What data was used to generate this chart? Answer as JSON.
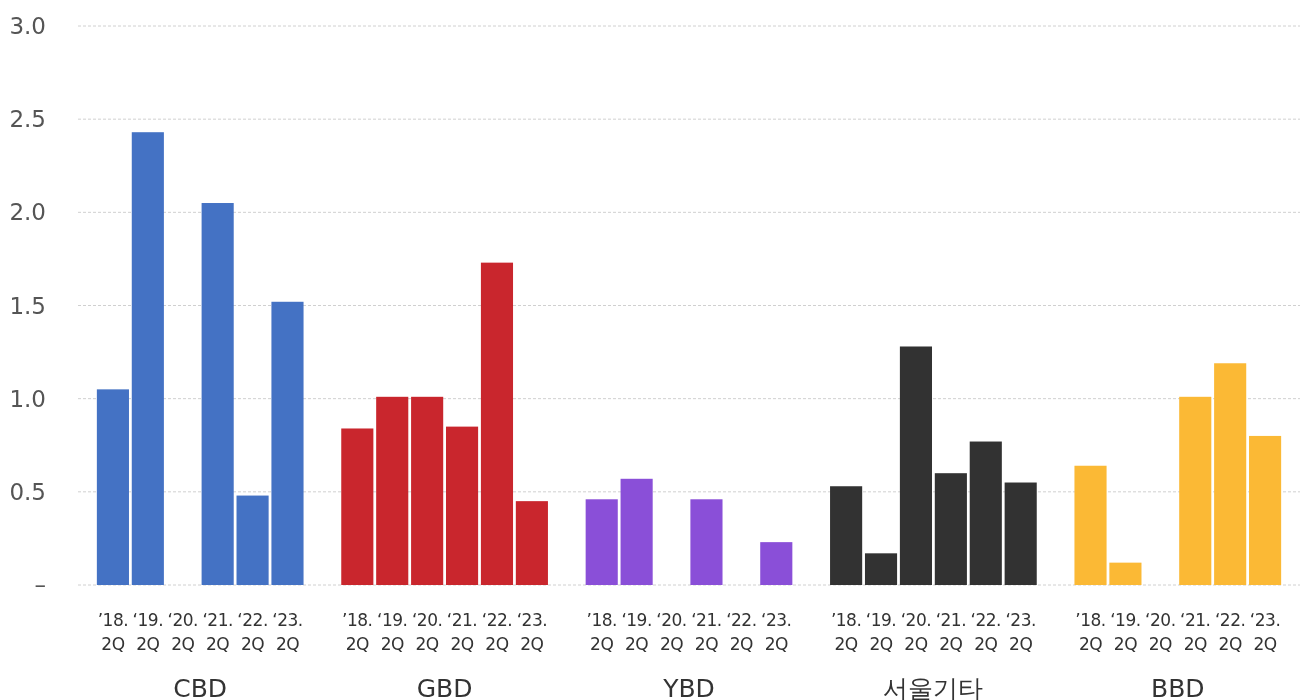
{
  "chart_data": {
    "type": "bar",
    "categories": [
      "’18. 2Q",
      "‘19. 2Q",
      "‘20. 2Q",
      "‘21. 2Q",
      "‘22. 2Q",
      "‘23. 2Q",
      "’18. 2Q",
      "‘19. 2Q",
      "‘20. 2Q",
      "‘21. 2Q",
      "‘22. 2Q",
      "‘23. 2Q",
      "’18. 2Q",
      "‘19. 2Q",
      "‘20. 2Q",
      "‘21. 2Q",
      "‘22. 2Q",
      "‘23. 2Q",
      "’18. 2Q",
      "‘19. 2Q",
      "‘20. 2Q",
      "‘21. 2Q",
      "‘22. 2Q",
      "‘23. 2Q",
      "’18. 2Q",
      "‘19. 2Q",
      "‘20. 2Q",
      "‘21. 2Q",
      "‘22. 2Q",
      "‘23. 2Q"
    ],
    "values": [
      1.05,
      2.43,
      null,
      2.05,
      0.48,
      1.52,
      0.84,
      1.01,
      1.01,
      0.85,
      1.73,
      0.45,
      0.46,
      0.57,
      null,
      0.46,
      null,
      0.23,
      0.53,
      0.17,
      1.28,
      0.6,
      0.77,
      0.55,
      0.64,
      0.12,
      null,
      1.01,
      1.19,
      0.8
    ],
    "colors": [
      "#4472c4",
      "#4472c4",
      null,
      "#4472c4",
      "#4472c4",
      "#4472c4",
      "#c9262d",
      "#c9262d",
      "#c9262d",
      "#c9262d",
      "#c9262d",
      "#c9262d",
      "#8a4fd8",
      "#8a4fd8",
      null,
      "#8a4fd8",
      null,
      "#8a4fd8",
      "#323232",
      "#323232",
      "#323232",
      "#323232",
      "#323232",
      "#323232",
      "#fbb935",
      "#fbb935",
      null,
      "#fbb935",
      "#fbb935",
      "#fbb935"
    ],
    "annotations": [
      "CBD",
      "GBD",
      "YBD",
      "서울기타",
      "BBD"
    ],
    "ylim": [
      0,
      3
    ],
    "yticks": [
      {
        "value": 0,
        "label": "–"
      },
      0.5,
      {
        "value": 1,
        "label": "1.0"
      },
      1.5,
      {
        "value": 2,
        "label": "2.0"
      },
      2.5,
      {
        "value": 3,
        "label": "3.0"
      }
    ],
    "grid": "y"
  }
}
